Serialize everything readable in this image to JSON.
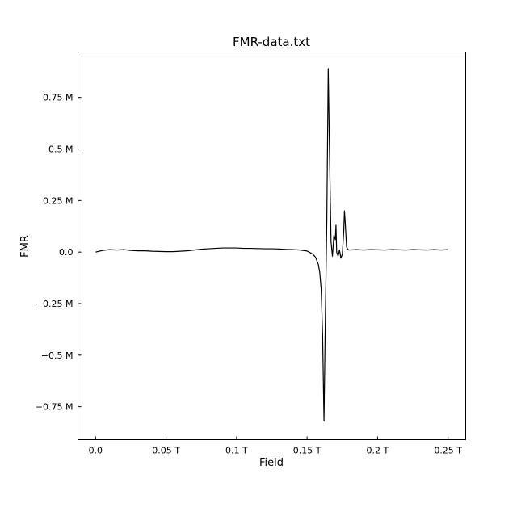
{
  "chart_data": {
    "type": "line",
    "title": "FMR-data.txt",
    "xlabel": "Field",
    "ylabel": "FMR",
    "xlim": [
      -0.0125,
      0.2625
    ],
    "ylim": [
      -0.91,
      0.97
    ],
    "x_ticks": [
      {
        "value": 0.0,
        "label": "0.0"
      },
      {
        "value": 0.05,
        "label": "0.05 T"
      },
      {
        "value": 0.1,
        "label": "0.1 T"
      },
      {
        "value": 0.15,
        "label": "0.15 T"
      },
      {
        "value": 0.2,
        "label": "0.2 T"
      },
      {
        "value": 0.25,
        "label": "0.25 T"
      }
    ],
    "y_ticks": [
      {
        "value": 0.75,
        "label": "0.75 M"
      },
      {
        "value": 0.5,
        "label": "0.5 M"
      },
      {
        "value": 0.25,
        "label": "0.25 M"
      },
      {
        "value": 0.0,
        "label": "0.0"
      },
      {
        "value": -0.25,
        "label": "−0.25 M"
      },
      {
        "value": -0.5,
        "label": "−0.5 M"
      },
      {
        "value": -0.75,
        "label": "−0.75 M"
      }
    ],
    "grid": false,
    "line_color": "#000000",
    "series": [
      {
        "name": "FMR",
        "x": [
          0.0,
          0.005,
          0.01,
          0.015,
          0.02,
          0.025,
          0.03,
          0.035,
          0.04,
          0.045,
          0.05,
          0.055,
          0.06,
          0.065,
          0.07,
          0.075,
          0.08,
          0.085,
          0.09,
          0.095,
          0.1,
          0.105,
          0.11,
          0.115,
          0.12,
          0.125,
          0.13,
          0.135,
          0.14,
          0.145,
          0.15,
          0.152,
          0.154,
          0.156,
          0.158,
          0.159,
          0.16,
          0.161,
          0.162,
          0.163,
          0.164,
          0.165,
          0.166,
          0.167,
          0.168,
          0.169,
          0.17,
          0.1705,
          0.171,
          0.172,
          0.173,
          0.174,
          0.175,
          0.176,
          0.1765,
          0.177,
          0.178,
          0.179,
          0.18,
          0.185,
          0.19,
          0.195,
          0.2,
          0.205,
          0.21,
          0.215,
          0.22,
          0.225,
          0.23,
          0.235,
          0.24,
          0.245,
          0.25
        ],
        "y": [
          0.0,
          0.008,
          0.012,
          0.01,
          0.012,
          0.008,
          0.006,
          0.006,
          0.004,
          0.003,
          0.002,
          0.002,
          0.004,
          0.006,
          0.01,
          0.014,
          0.016,
          0.018,
          0.02,
          0.02,
          0.02,
          0.018,
          0.018,
          0.017,
          0.016,
          0.016,
          0.015,
          0.013,
          0.012,
          0.01,
          0.005,
          -0.002,
          -0.01,
          -0.025,
          -0.06,
          -0.1,
          -0.18,
          -0.4,
          -0.82,
          -0.3,
          0.15,
          0.89,
          0.45,
          0.05,
          -0.02,
          0.08,
          0.06,
          0.13,
          0.0,
          -0.02,
          0.01,
          -0.03,
          -0.01,
          0.1,
          0.2,
          0.15,
          0.025,
          0.012,
          0.01,
          0.012,
          0.01,
          0.012,
          0.011,
          0.01,
          0.012,
          0.011,
          0.01,
          0.012,
          0.011,
          0.01,
          0.012,
          0.01,
          0.012
        ]
      }
    ]
  }
}
